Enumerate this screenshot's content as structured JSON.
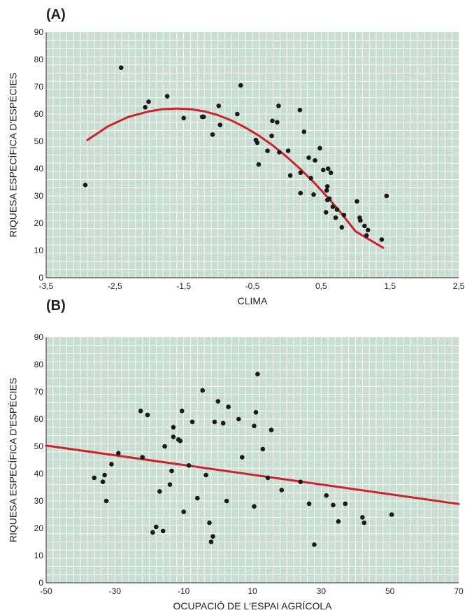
{
  "chart_data": [
    {
      "type": "scatter",
      "panel_label": "(A)",
      "xlabel": "CLIMA",
      "ylabel": "RIQUESA ESPECÍFICA D'ESPÈCIES",
      "xlim": [
        -3.5,
        2.5
      ],
      "ylim": [
        0,
        90
      ],
      "x_ticks": [
        "-3,5",
        "-2,5",
        "-1,5",
        "-0,5",
        "0,5",
        "1,5",
        "2,5"
      ],
      "y_ticks": [
        "0",
        "10",
        "20",
        "30",
        "40",
        "50",
        "60",
        "70",
        "80",
        "90"
      ],
      "grid": true,
      "colors": {
        "plot_background": "#c9ddd3",
        "grid": "#ffffff",
        "points": "#1a1a1a",
        "fit_line": "#cc2229"
      },
      "points": [
        {
          "x": -2.93,
          "y": 34
        },
        {
          "x": -2.41,
          "y": 77
        },
        {
          "x": -2.06,
          "y": 62.5
        },
        {
          "x": -2.01,
          "y": 64.5
        },
        {
          "x": -1.74,
          "y": 66.5
        },
        {
          "x": -1.5,
          "y": 58.5
        },
        {
          "x": -1.23,
          "y": 59
        },
        {
          "x": -1.21,
          "y": 59
        },
        {
          "x": -1.08,
          "y": 52.5
        },
        {
          "x": -0.99,
          "y": 63
        },
        {
          "x": -0.97,
          "y": 56
        },
        {
          "x": -0.72,
          "y": 60
        },
        {
          "x": -0.67,
          "y": 70.5
        },
        {
          "x": -0.45,
          "y": 50.5
        },
        {
          "x": -0.43,
          "y": 49.5
        },
        {
          "x": -0.41,
          "y": 41.5
        },
        {
          "x": -0.28,
          "y": 46.5
        },
        {
          "x": -0.22,
          "y": 52
        },
        {
          "x": -0.21,
          "y": 57.5
        },
        {
          "x": -0.14,
          "y": 57
        },
        {
          "x": -0.12,
          "y": 63
        },
        {
          "x": -0.11,
          "y": 46
        },
        {
          "x": 0.02,
          "y": 46.5
        },
        {
          "x": 0.05,
          "y": 37.5
        },
        {
          "x": 0.19,
          "y": 61.5
        },
        {
          "x": 0.2,
          "y": 38.5
        },
        {
          "x": 0.2,
          "y": 31
        },
        {
          "x": 0.25,
          "y": 53.5
        },
        {
          "x": 0.32,
          "y": 44
        },
        {
          "x": 0.35,
          "y": 36.5
        },
        {
          "x": 0.39,
          "y": 30.5
        },
        {
          "x": 0.41,
          "y": 43
        },
        {
          "x": 0.48,
          "y": 47.5
        },
        {
          "x": 0.53,
          "y": 39.5
        },
        {
          "x": 0.57,
          "y": 24
        },
        {
          "x": 0.58,
          "y": 32
        },
        {
          "x": 0.59,
          "y": 33.5
        },
        {
          "x": 0.59,
          "y": 28.5
        },
        {
          "x": 0.6,
          "y": 40
        },
        {
          "x": 0.62,
          "y": 29
        },
        {
          "x": 0.64,
          "y": 38.5
        },
        {
          "x": 0.67,
          "y": 26
        },
        {
          "x": 0.71,
          "y": 22
        },
        {
          "x": 0.73,
          "y": 25
        },
        {
          "x": 0.8,
          "y": 18.5
        },
        {
          "x": 0.83,
          "y": 23
        },
        {
          "x": 1.02,
          "y": 28
        },
        {
          "x": 1.06,
          "y": 22
        },
        {
          "x": 1.07,
          "y": 21
        },
        {
          "x": 1.13,
          "y": 19
        },
        {
          "x": 1.16,
          "y": 15.5
        },
        {
          "x": 1.18,
          "y": 17.5
        },
        {
          "x": 1.38,
          "y": 14
        },
        {
          "x": 1.45,
          "y": 30
        }
      ],
      "fit": {
        "kind": "quadratic",
        "x": [
          -2.9,
          -2.6,
          -2.3,
          -2.0,
          -1.8,
          -1.6,
          -1.4,
          -1.2,
          -1.0,
          -0.8,
          -0.6,
          -0.4,
          -0.2,
          0.0,
          0.2,
          0.4,
          0.6,
          0.8,
          1.0,
          1.2,
          1.4
        ],
        "y": [
          50.5,
          55.5,
          59.0,
          61.0,
          61.8,
          62.0,
          61.8,
          61.0,
          59.6,
          57.6,
          55.0,
          52.0,
          48.4,
          44.3,
          39.8,
          34.8,
          29.3,
          23.4,
          17.0,
          14.0,
          11.0
        ]
      }
    },
    {
      "type": "scatter",
      "panel_label": "(B)",
      "xlabel": "OCUPACIÓ DE L'ESPAI AGRÍCOLA",
      "ylabel": "RIQUESA ESPECÍFICA D'ESPÈCIES",
      "xlim": [
        -50,
        70
      ],
      "ylim": [
        0,
        90
      ],
      "x_ticks": [
        "-50",
        "-30",
        "-10",
        "10",
        "30",
        "50",
        "70"
      ],
      "y_ticks": [
        "0",
        "10",
        "20",
        "30",
        "40",
        "50",
        "60",
        "70",
        "80",
        "90"
      ],
      "grid": true,
      "colors": {
        "plot_background": "#c9ddd3",
        "grid": "#ffffff",
        "points": "#1a1a1a",
        "fit_line": "#cc2229"
      },
      "points": [
        {
          "x": -36,
          "y": 38.5
        },
        {
          "x": -33.5,
          "y": 37
        },
        {
          "x": -33,
          "y": 39.5
        },
        {
          "x": -32.5,
          "y": 30
        },
        {
          "x": -31,
          "y": 43.5
        },
        {
          "x": -29,
          "y": 47.5
        },
        {
          "x": -22.5,
          "y": 63
        },
        {
          "x": -22,
          "y": 46
        },
        {
          "x": -20.5,
          "y": 61.5
        },
        {
          "x": -19,
          "y": 18.5
        },
        {
          "x": -18,
          "y": 20.5
        },
        {
          "x": -17,
          "y": 33.5
        },
        {
          "x": -16,
          "y": 19
        },
        {
          "x": -15.5,
          "y": 50
        },
        {
          "x": -14,
          "y": 36
        },
        {
          "x": -13.5,
          "y": 41
        },
        {
          "x": -13,
          "y": 53.5
        },
        {
          "x": -13,
          "y": 57
        },
        {
          "x": -11.5,
          "y": 52.5
        },
        {
          "x": -11,
          "y": 52
        },
        {
          "x": -10.5,
          "y": 63
        },
        {
          "x": -10,
          "y": 26
        },
        {
          "x": -8.5,
          "y": 43
        },
        {
          "x": -7.5,
          "y": 59
        },
        {
          "x": -6,
          "y": 31
        },
        {
          "x": -4.5,
          "y": 70.5
        },
        {
          "x": -3.5,
          "y": 39.5
        },
        {
          "x": -2.5,
          "y": 22
        },
        {
          "x": -2,
          "y": 15
        },
        {
          "x": -1.5,
          "y": 17
        },
        {
          "x": -1,
          "y": 59
        },
        {
          "x": 0,
          "y": 66.5
        },
        {
          "x": 1.5,
          "y": 58.5
        },
        {
          "x": 2.5,
          "y": 30
        },
        {
          "x": 3,
          "y": 64.5
        },
        {
          "x": 6,
          "y": 60
        },
        {
          "x": 7,
          "y": 46
        },
        {
          "x": 10.5,
          "y": 28
        },
        {
          "x": 10.5,
          "y": 57.5
        },
        {
          "x": 11,
          "y": 62.5
        },
        {
          "x": 11.5,
          "y": 76.5
        },
        {
          "x": 13,
          "y": 49
        },
        {
          "x": 14.5,
          "y": 38.5
        },
        {
          "x": 15.5,
          "y": 56
        },
        {
          "x": 18.5,
          "y": 34
        },
        {
          "x": 24,
          "y": 37
        },
        {
          "x": 26.5,
          "y": 29
        },
        {
          "x": 28,
          "y": 14
        },
        {
          "x": 31.5,
          "y": 32
        },
        {
          "x": 33.5,
          "y": 28.5
        },
        {
          "x": 35,
          "y": 22.5
        },
        {
          "x": 37,
          "y": 29
        },
        {
          "x": 42,
          "y": 24
        },
        {
          "x": 42.5,
          "y": 22
        },
        {
          "x": 50.5,
          "y": 25
        }
      ],
      "fit": {
        "kind": "linear",
        "x": [
          -50,
          70
        ],
        "y": [
          50.3,
          28.9
        ]
      }
    }
  ]
}
